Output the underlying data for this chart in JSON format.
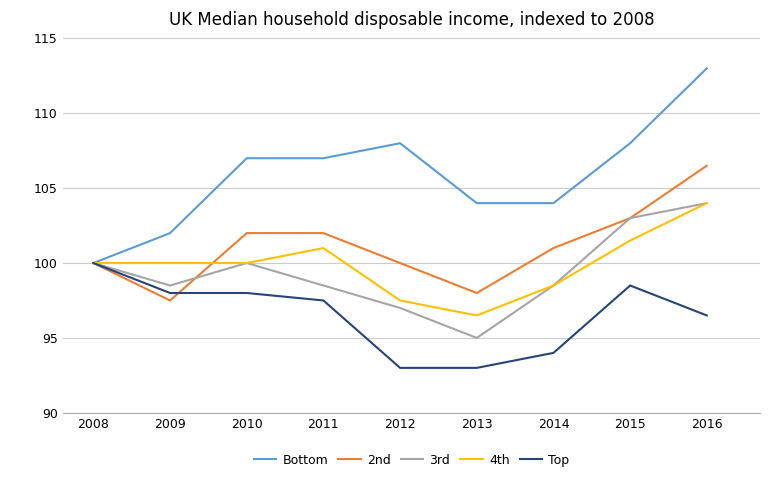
{
  "title": "UK Median household disposable income, indexed to 2008",
  "years": [
    2008,
    2009,
    2010,
    2011,
    2012,
    2013,
    2014,
    2015,
    2016
  ],
  "series": {
    "Bottom": [
      100,
      102,
      107,
      107,
      108,
      104,
      104,
      108,
      113
    ],
    "2nd": [
      100,
      97.5,
      102,
      102,
      100,
      98,
      101,
      103,
      106.5
    ],
    "3rd": [
      100,
      98.5,
      100,
      98.5,
      97,
      95,
      98.5,
      103,
      104
    ],
    "4th": [
      100,
      100,
      100,
      101,
      97.5,
      96.5,
      98.5,
      101.5,
      104
    ],
    "Top": [
      100,
      98,
      98,
      97.5,
      93,
      93,
      94,
      98.5,
      96.5
    ]
  },
  "color_map": {
    "Bottom": "#5B9BD5",
    "2nd": "#ED7D31",
    "3rd": "#A5A5A5",
    "4th": "#FFC000",
    "Top": "#264478"
  },
  "series_order": [
    "Bottom",
    "2nd",
    "3rd",
    "4th",
    "Top"
  ],
  "ylim": [
    90,
    115
  ],
  "yticks": [
    90,
    95,
    100,
    105,
    110,
    115
  ],
  "xlim": [
    2007.6,
    2016.7
  ],
  "background_color": "#FFFFFF",
  "grid_color": "#CCCCCC",
  "title_fontsize": 12,
  "tick_fontsize": 9,
  "legend_fontsize": 9,
  "linewidth": 1.5
}
